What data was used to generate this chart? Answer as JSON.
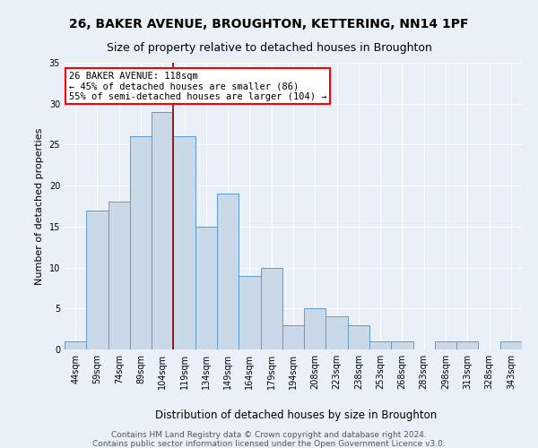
{
  "title": "26, BAKER AVENUE, BROUGHTON, KETTERING, NN14 1PF",
  "subtitle": "Size of property relative to detached houses in Broughton",
  "xlabel": "Distribution of detached houses by size in Broughton",
  "ylabel": "Number of detached properties",
  "bar_labels": [
    "44sqm",
    "59sqm",
    "74sqm",
    "89sqm",
    "104sqm",
    "119sqm",
    "134sqm",
    "149sqm",
    "164sqm",
    "179sqm",
    "194sqm",
    "208sqm",
    "223sqm",
    "238sqm",
    "253sqm",
    "268sqm",
    "283sqm",
    "298sqm",
    "313sqm",
    "328sqm",
    "343sqm"
  ],
  "bar_values": [
    1,
    17,
    18,
    26,
    29,
    26,
    15,
    19,
    9,
    10,
    3,
    5,
    4,
    3,
    1,
    1,
    0,
    1,
    1,
    0,
    1
  ],
  "bar_color": "#c9d9e8",
  "bar_edge_color": "#5b9bd5",
  "vline_index": 4.5,
  "vline_color": "#8b0000",
  "annotation_text": "26 BAKER AVENUE: 118sqm\n← 45% of detached houses are smaller (86)\n55% of semi-detached houses are larger (104) →",
  "annotation_box_color": "white",
  "annotation_box_edge_color": "red",
  "ylim": [
    0,
    35
  ],
  "yticks": [
    0,
    5,
    10,
    15,
    20,
    25,
    30,
    35
  ],
  "footer_line1": "Contains HM Land Registry data © Crown copyright and database right 2024.",
  "footer_line2": "Contains public sector information licensed under the Open Government Licence v3.0.",
  "background_color": "#eaf0f8",
  "plot_background_color": "#eaf0f8",
  "grid_color": "white",
  "title_fontsize": 10,
  "subtitle_fontsize": 9,
  "xlabel_fontsize": 8.5,
  "ylabel_fontsize": 8,
  "tick_fontsize": 7,
  "footer_fontsize": 6.5,
  "annotation_fontsize": 7.5
}
